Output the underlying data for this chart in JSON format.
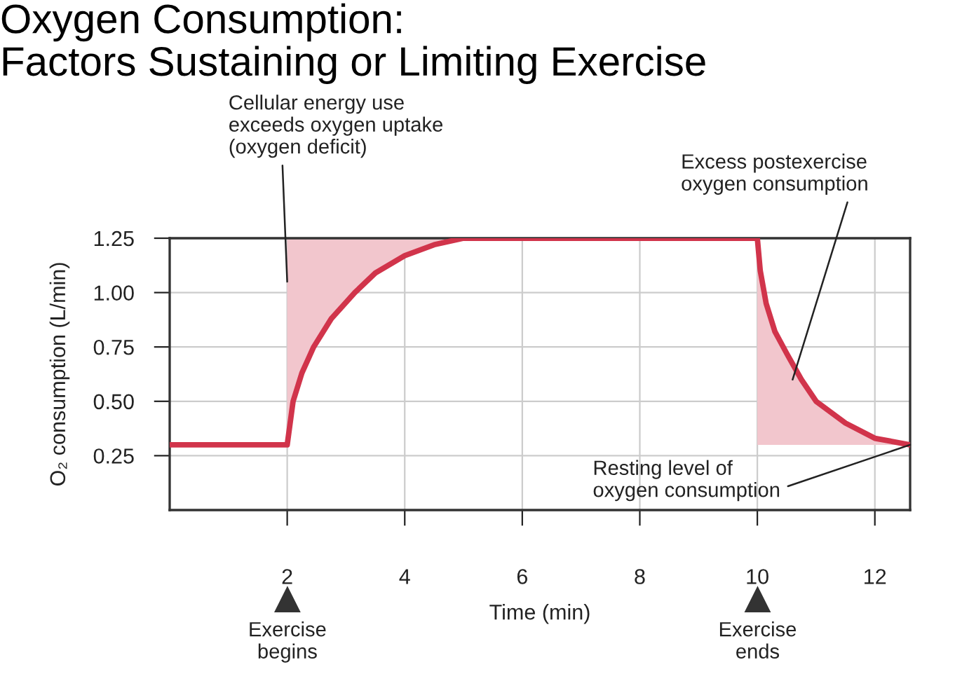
{
  "chart_data": {
    "type": "line",
    "title": "Oxygen Consumption:\nFactors Sustaining or Limiting Exercise",
    "xlabel": "Time (min)",
    "ylabel": "O₂ consumption (L/min)",
    "series": [
      {
        "color": "#d1344b",
        "x": [
          0,
          2,
          2.1,
          2.25,
          2.45,
          2.75,
          3.15,
          3.5,
          4,
          4.5,
          5,
          10,
          10,
          10.05,
          10.15,
          10.3,
          10.5,
          10.75,
          11,
          11.5,
          12,
          12.6
        ],
        "values": [
          0.3,
          0.3,
          0.5,
          0.63,
          0.75,
          0.88,
          1.0,
          1.09,
          1.17,
          1.22,
          1.25,
          1.25,
          1.25,
          1.1,
          0.95,
          0.82,
          0.72,
          0.6,
          0.5,
          0.4,
          0.33,
          0.3
        ],
        "lower": [
          null,
          0.3,
          0.5,
          0.63,
          0.75,
          0.88,
          1.0,
          1.09,
          1.17,
          1.22,
          1.25,
          1.25,
          0.3,
          0.3,
          0.3,
          0.3,
          0.3,
          0.3,
          0.3,
          0.3,
          0.3,
          0.3
        ],
        "upper": [
          null,
          1.25,
          1.25,
          1.25,
          1.25,
          1.25,
          1.25,
          1.25,
          1.25,
          1.25,
          1.25,
          1.25,
          1.25,
          1.1,
          0.95,
          0.82,
          0.72,
          0.6,
          0.5,
          0.4,
          0.33,
          0.3
        ]
      }
    ],
    "xlim": [
      0,
      12.6
    ],
    "ylim": [
      0,
      1.25
    ],
    "xticks": [
      2,
      4,
      6,
      8,
      10,
      12
    ],
    "yticks": [
      0.25,
      {
        "value": 0.5,
        "label": "0.50"
      },
      0.75,
      {
        "value": 1,
        "label": "1.00"
      },
      1.25
    ],
    "grid": true,
    "marker": "none",
    "line_style": "solid",
    "annotations": [
      {
        "text": "Cellular energy use\nexceeds oxygen uptake\n(oxygen deficit)",
        "x": 2,
        "y": 1.05
      },
      {
        "text": "Excess postexercise\noxygen consumption",
        "x": 10.6,
        "y": 0.6
      },
      {
        "text": "Resting level of\noxygen consumption",
        "x": 12.6,
        "y": 0.3
      },
      "Exercise\nbegins",
      "Exercise\nends"
    ]
  }
}
